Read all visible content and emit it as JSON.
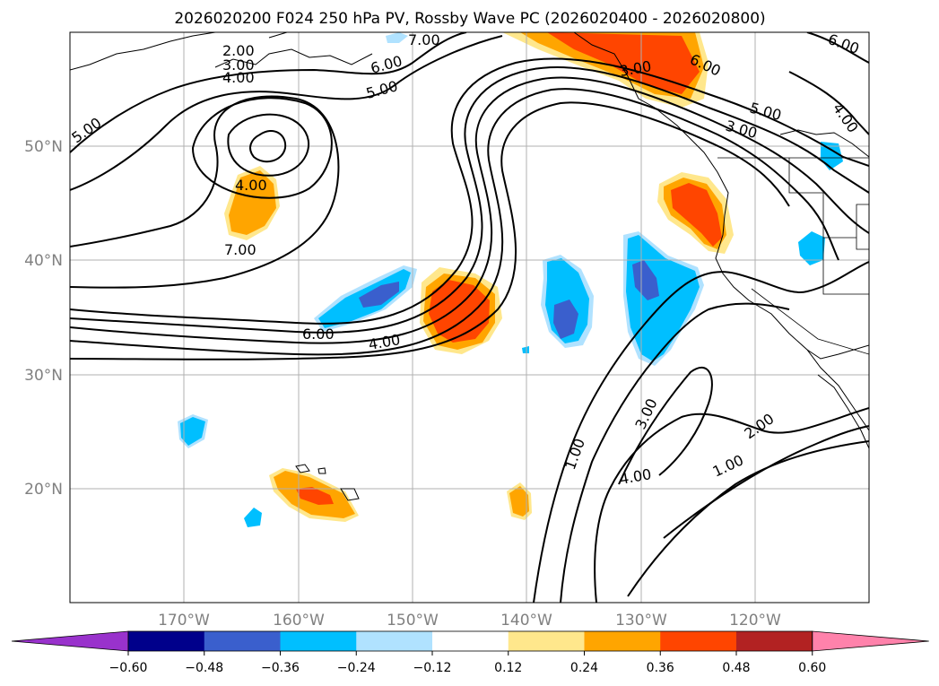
{
  "title": "2026020200 F024 250 hPa PV, Rossby Wave PC (2026020400 - 2026020800)",
  "lat_labels": [
    "50°N",
    "40°N",
    "30°N",
    "20°N"
  ],
  "lon_labels": [
    "170°W",
    "160°W",
    "150°W",
    "140°W",
    "130°W",
    "120°W"
  ],
  "contour_labels": [
    "2.00",
    "3.00",
    "4.00",
    "5.00",
    "7.00",
    "6.00",
    "5.00",
    "6.00",
    "3.00",
    "5.00",
    "3.00",
    "6.00",
    "4.00",
    "4.00",
    "7.00",
    "6.00",
    "4.00",
    "1.00",
    "3.00",
    "4.00",
    "2.00",
    "1.00"
  ],
  "colorbar": {
    "ticks": [
      "−0.60",
      "−0.48",
      "−0.36",
      "−0.24",
      "−0.12",
      "0.12",
      "0.24",
      "0.36",
      "0.48",
      "0.60"
    ],
    "colors": [
      "#9932cc",
      "#00008b",
      "#3a5fcd",
      "#00bfff",
      "#b0e2ff",
      "#ffffff",
      "#ffe78c",
      "#ffa500",
      "#ff4500",
      "#b22222",
      "#ff82ab"
    ]
  },
  "map": {
    "lon_range": [
      -180,
      -110
    ],
    "lat_range": [
      10,
      60
    ],
    "fill_field": "Rossby Wave PC",
    "contour_field": "250 hPa PV",
    "colors": {
      "land_lines": "#000000",
      "grid": "#b0b0b0"
    }
  }
}
